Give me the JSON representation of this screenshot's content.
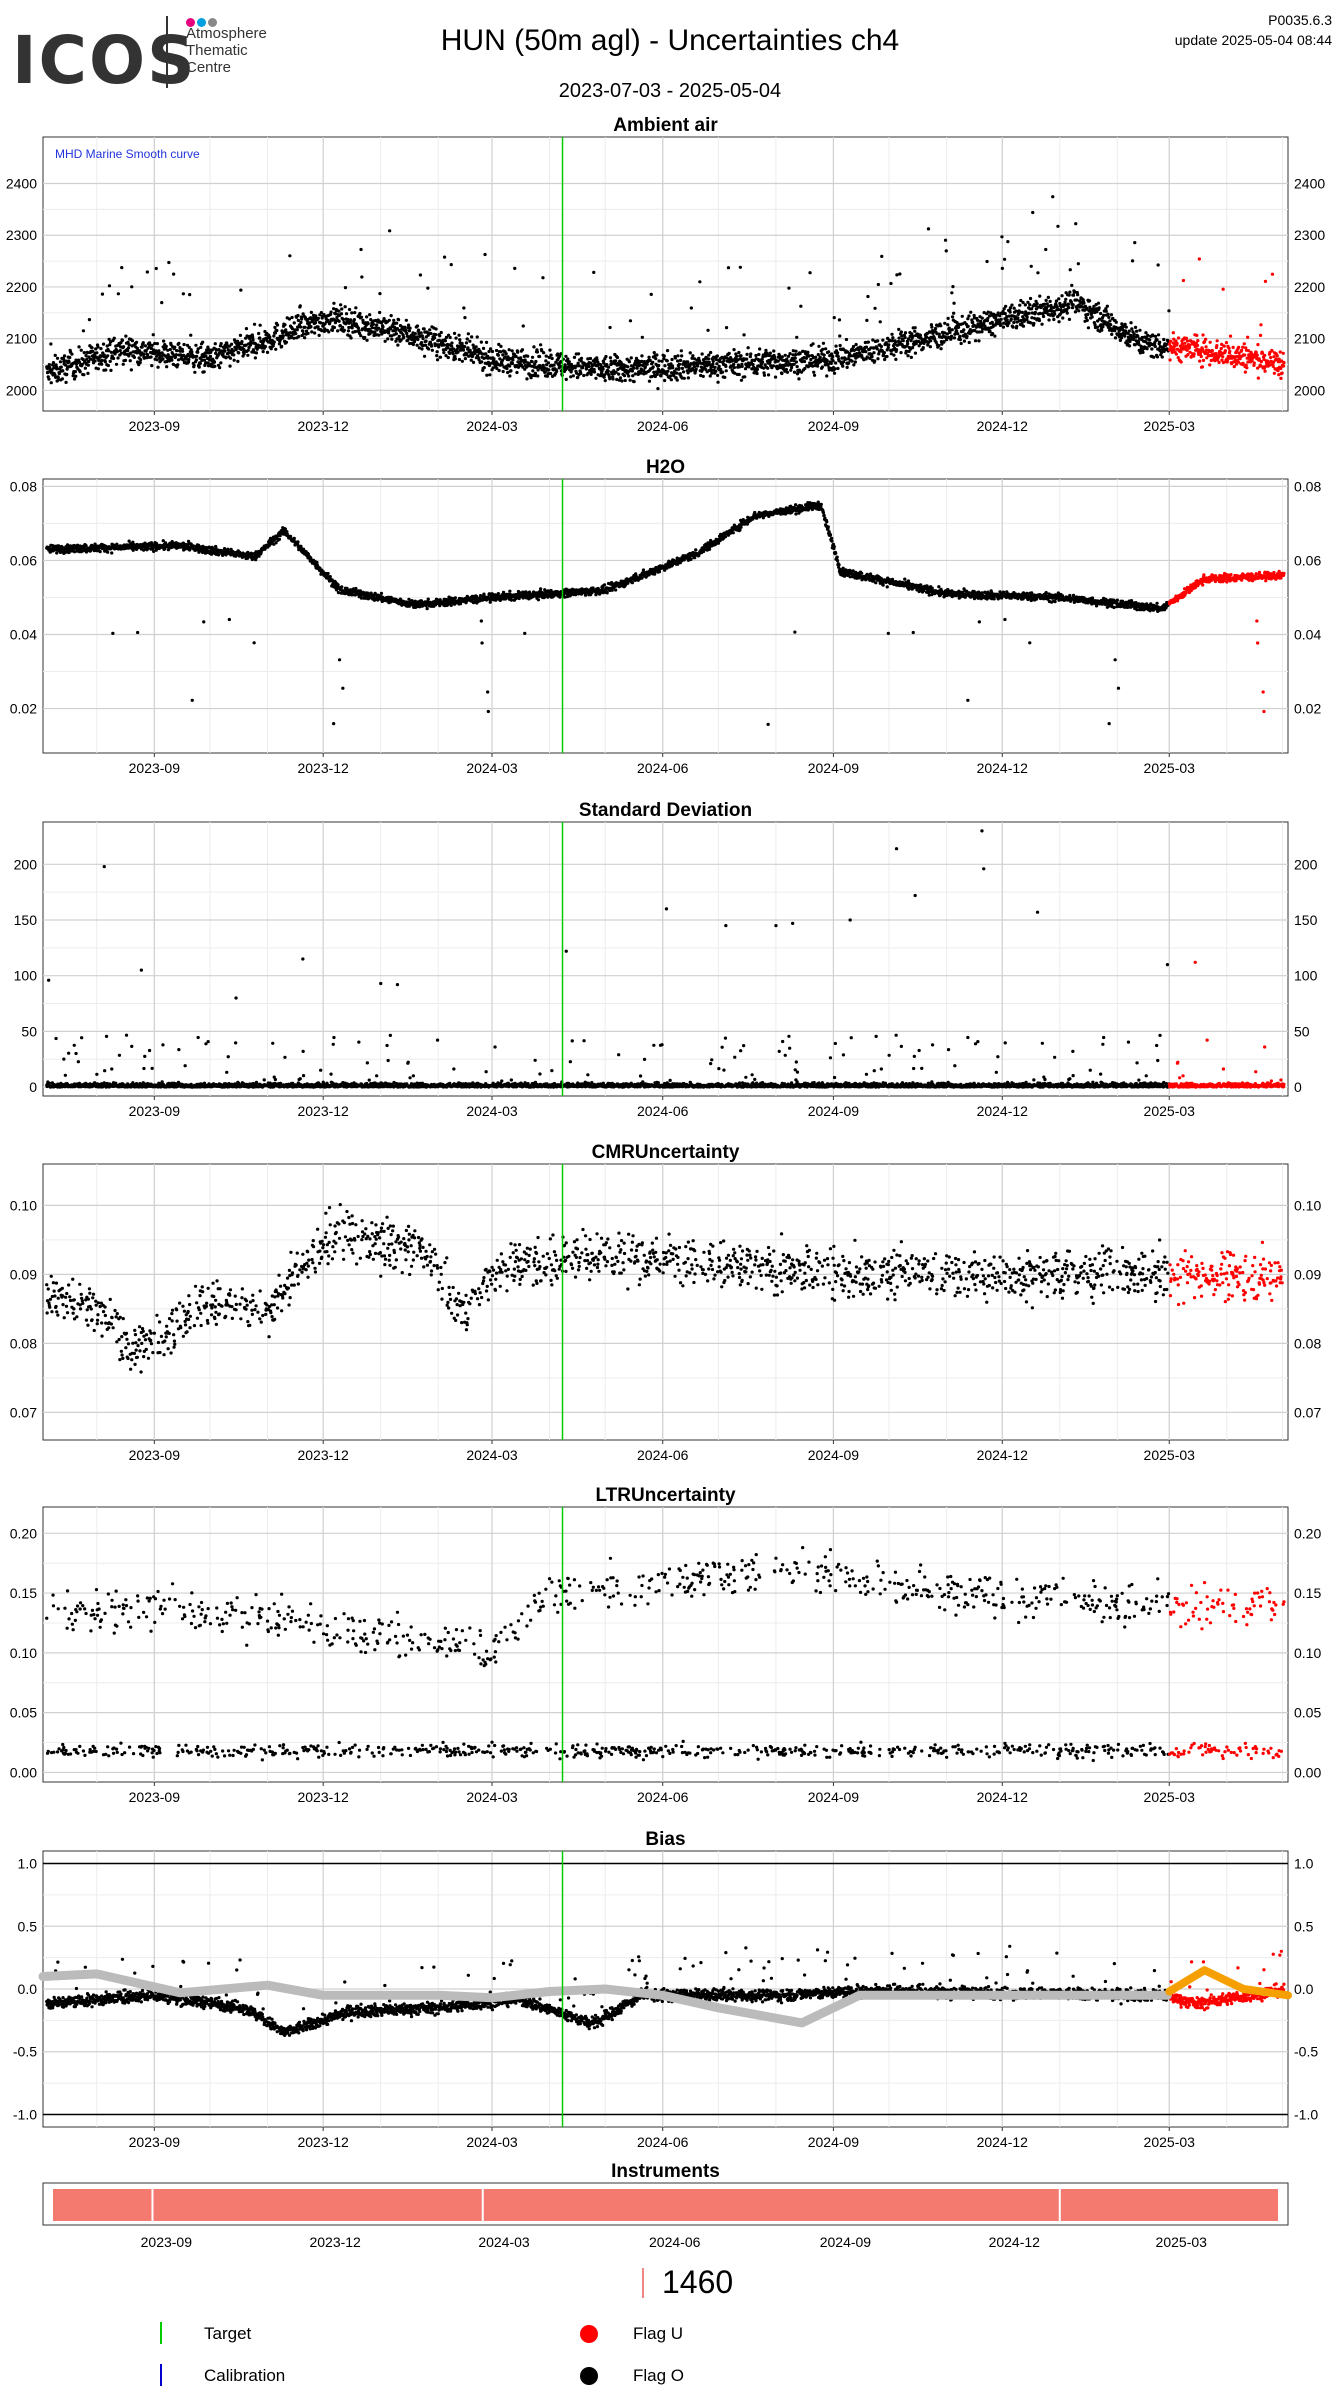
{
  "header": {
    "logo_text": "ICOS",
    "logo_sub": [
      "Atmosphere",
      "Thematic",
      "Centre"
    ],
    "title": "HUN  (50m agl) - Uncertainties ch4",
    "date_range": "2023-07-03 - 2025-05-04",
    "version": "P0035.6.3",
    "update": "update  2025-05-04 08:44"
  },
  "colors": {
    "points": "#000000",
    "flag_u": "#ff0000",
    "target": "#00cc00",
    "calibration": "#0000cc",
    "bias_smooth": "#bbbbbb",
    "bias_recent": "#f5a000",
    "instrument": "#f47a70",
    "logo_dots": [
      "#e6007e",
      "#00a0e0",
      "#888888"
    ]
  },
  "chart_data": [
    {
      "type": "scatter",
      "title": "Ambient air",
      "annotation": "MHD Marine Smooth curve",
      "x_range": [
        "2023-07-03",
        "2025-05-04"
      ],
      "ylim": [
        1960,
        2490
      ],
      "yticks": [
        2000,
        2100,
        2200,
        2300,
        2400
      ],
      "xticks": [
        "2023-09",
        "2023-12",
        "2024-03",
        "2024-06",
        "2024-09",
        "2024-12",
        "2025-03"
      ],
      "grid": true,
      "target_line": "2024-04-08",
      "flag_u_from": "2025-03-01",
      "series_profile": [
        [
          "2023-07-03",
          2030
        ],
        [
          "2023-08-15",
          2080
        ],
        [
          "2023-10-01",
          2060
        ],
        [
          "2023-12-05",
          2140
        ],
        [
          "2024-01-15",
          2110
        ],
        [
          "2024-03-01",
          2060
        ],
        [
          "2024-05-01",
          2040
        ],
        [
          "2024-07-01",
          2050
        ],
        [
          "2024-09-01",
          2060
        ],
        [
          "2024-11-01",
          2110
        ],
        [
          "2025-01-10",
          2170
        ],
        [
          "2025-02-15",
          2090
        ],
        [
          "2025-03-15",
          2080
        ],
        [
          "2025-05-04",
          2050
        ]
      ]
    },
    {
      "type": "scatter",
      "title": "H2O",
      "x_range": [
        "2023-07-03",
        "2025-05-04"
      ],
      "ylim": [
        0.008,
        0.082
      ],
      "yticks": [
        0.02,
        0.04,
        0.06,
        0.08
      ],
      "xticks": [
        "2023-09",
        "2023-12",
        "2024-03",
        "2024-06",
        "2024-09",
        "2024-12",
        "2025-03"
      ],
      "grid": true,
      "target_line": "2024-04-08",
      "flag_u_from": "2025-03-01",
      "series_profile": [
        [
          "2023-07-03",
          0.063
        ],
        [
          "2023-09-15",
          0.064
        ],
        [
          "2023-10-25",
          0.061
        ],
        [
          "2023-11-10",
          0.068
        ],
        [
          "2023-12-10",
          0.052
        ],
        [
          "2024-01-20",
          0.048
        ],
        [
          "2024-03-01",
          0.05
        ],
        [
          "2024-05-01",
          0.052
        ],
        [
          "2024-06-20",
          0.062
        ],
        [
          "2024-07-20",
          0.072
        ],
        [
          "2024-08-25",
          0.075
        ],
        [
          "2024-09-05",
          0.057
        ],
        [
          "2024-11-01",
          0.051
        ],
        [
          "2025-01-01",
          0.05
        ],
        [
          "2025-02-25",
          0.047
        ],
        [
          "2025-03-20",
          0.055
        ],
        [
          "2025-05-04",
          0.056
        ]
      ]
    },
    {
      "type": "scatter",
      "title": "Standard Deviation",
      "x_range": [
        "2023-07-03",
        "2025-05-04"
      ],
      "ylim": [
        -8,
        238
      ],
      "yticks": [
        0,
        50,
        100,
        150,
        200
      ],
      "xticks": [
        "2023-09",
        "2023-12",
        "2024-03",
        "2024-06",
        "2024-09",
        "2024-12",
        "2025-03"
      ],
      "grid": true,
      "target_line": "2024-04-08",
      "flag_u_from": "2025-03-01",
      "series_profile": [
        [
          "2023-07-03",
          5
        ],
        [
          "2025-05-04",
          5
        ]
      ],
      "outliers": [
        [
          "2023-07-06",
          96
        ],
        [
          "2023-08-05",
          198
        ],
        [
          "2023-08-25",
          105
        ],
        [
          "2023-10-15",
          80
        ],
        [
          "2023-11-20",
          115
        ],
        [
          "2024-01-01",
          93
        ],
        [
          "2024-01-10",
          92
        ],
        [
          "2024-04-10",
          122
        ],
        [
          "2024-06-03",
          160
        ],
        [
          "2024-07-05",
          145
        ],
        [
          "2024-08-01",
          145
        ],
        [
          "2024-08-10",
          147
        ],
        [
          "2024-09-10",
          150
        ],
        [
          "2024-10-05",
          214
        ],
        [
          "2024-10-15",
          172
        ],
        [
          "2024-11-20",
          230
        ],
        [
          "2024-11-21",
          196
        ],
        [
          "2024-12-20",
          157
        ],
        [
          "2025-02-28",
          110
        ],
        [
          "2025-03-15",
          112
        ]
      ]
    },
    {
      "type": "scatter",
      "title": "CMRUncertainty",
      "x_range": [
        "2023-07-03",
        "2025-05-04"
      ],
      "ylim": [
        0.066,
        0.106
      ],
      "yticks": [
        0.07,
        0.08,
        0.09,
        0.1
      ],
      "xticks": [
        "2023-09",
        "2023-12",
        "2024-03",
        "2024-06",
        "2024-09",
        "2024-12",
        "2025-03"
      ],
      "grid": true,
      "target_line": "2024-04-08",
      "flag_u_from": "2025-03-01",
      "series_profile": [
        [
          "2023-07-03",
          0.088
        ],
        [
          "2023-08-01",
          0.085
        ],
        [
          "2023-08-20",
          0.079
        ],
        [
          "2023-10-01",
          0.086
        ],
        [
          "2023-11-01",
          0.085
        ],
        [
          "2023-12-05",
          0.096
        ],
        [
          "2024-01-30",
          0.093
        ],
        [
          "2024-02-10",
          0.084
        ],
        [
          "2024-03-05",
          0.091
        ],
        [
          "2024-05-01",
          0.093
        ],
        [
          "2024-09-01",
          0.09
        ],
        [
          "2025-05-04",
          0.09
        ]
      ]
    },
    {
      "type": "scatter",
      "title": "LTRUncertainty",
      "x_range": [
        "2023-07-03",
        "2025-05-04"
      ],
      "ylim": [
        -0.008,
        0.222
      ],
      "yticks": [
        0.0,
        0.05,
        0.1,
        0.15,
        0.2
      ],
      "xticks": [
        "2023-09",
        "2023-12",
        "2024-03",
        "2024-06",
        "2024-09",
        "2024-12",
        "2025-03"
      ],
      "grid": true,
      "target_line": "2024-04-08",
      "flag_u_from": "2025-03-01",
      "series_profile": [
        [
          "2023-07-03",
          0.02
        ],
        [
          "2025-05-04",
          0.02
        ]
      ],
      "upper_profile": [
        [
          "2023-07-03",
          0.13
        ],
        [
          "2023-09-01",
          0.14
        ],
        [
          "2023-12-15",
          0.12
        ],
        [
          "2024-03-01",
          0.1
        ],
        [
          "2024-04-01",
          0.15
        ],
        [
          "2024-06-15",
          0.16
        ],
        [
          "2024-08-01",
          0.17
        ],
        [
          "2024-09-15",
          0.16
        ],
        [
          "2024-11-01",
          0.15
        ],
        [
          "2025-02-01",
          0.14
        ],
        [
          "2025-05-04",
          0.14
        ]
      ]
    },
    {
      "type": "scatter",
      "title": "Bias",
      "x_range": [
        "2023-07-03",
        "2025-05-04"
      ],
      "ylim": [
        -1.1,
        1.1
      ],
      "yticks": [
        -1.0,
        -0.5,
        0.0,
        0.5,
        1.0
      ],
      "xticks": [
        "2023-09",
        "2023-12",
        "2024-03",
        "2024-06",
        "2024-09",
        "2024-12",
        "2025-03"
      ],
      "grid": true,
      "hlines": [
        -1.0,
        1.0
      ],
      "target_line": "2024-04-08",
      "flag_u_from": "2025-03-01",
      "series_profile": [
        [
          "2023-07-03",
          -0.12
        ],
        [
          "2023-09-01",
          -0.05
        ],
        [
          "2023-10-20",
          -0.15
        ],
        [
          "2023-11-10",
          -0.35
        ],
        [
          "2023-12-15",
          -0.18
        ],
        [
          "2024-02-01",
          -0.15
        ],
        [
          "2024-03-15",
          -0.08
        ],
        [
          "2024-04-25",
          -0.28
        ],
        [
          "2024-05-20",
          -0.05
        ],
        [
          "2024-08-01",
          -0.05
        ],
        [
          "2024-09-15",
          -0.02
        ],
        [
          "2025-02-28",
          -0.05
        ],
        [
          "2025-03-15",
          -0.12
        ],
        [
          "2025-05-04",
          0.0
        ]
      ],
      "smooth_curve": [
        [
          "2023-07-03",
          0.1
        ],
        [
          "2023-08-01",
          0.12
        ],
        [
          "2023-09-15",
          -0.03
        ],
        [
          "2023-11-01",
          0.03
        ],
        [
          "2023-12-01",
          -0.05
        ],
        [
          "2024-02-01",
          -0.05
        ],
        [
          "2024-03-01",
          -0.07
        ],
        [
          "2024-04-01",
          -0.02
        ],
        [
          "2024-05-01",
          0.0
        ],
        [
          "2024-06-01",
          -0.05
        ],
        [
          "2024-07-01",
          -0.15
        ],
        [
          "2024-08-15",
          -0.27
        ],
        [
          "2024-09-15",
          -0.05
        ],
        [
          "2024-11-01",
          -0.05
        ],
        [
          "2025-02-28",
          -0.05
        ]
      ],
      "recent_curve": [
        [
          "2025-03-01",
          -0.02
        ],
        [
          "2025-03-20",
          0.15
        ],
        [
          "2025-04-10",
          0.0
        ],
        [
          "2025-05-04",
          -0.05
        ]
      ]
    },
    {
      "type": "bar",
      "title": "Instruments",
      "x_range": [
        "2023-07-03",
        "2025-05-04"
      ],
      "xticks": [
        "2023-09",
        "2023-12",
        "2024-03",
        "2024-06",
        "2024-09",
        "2024-12",
        "2025-03"
      ],
      "segment_breaks": [
        "2023-08-31",
        "2024-02-25",
        "2025-01-01"
      ]
    }
  ],
  "legend": {
    "instrument_id": "1460",
    "items": [
      {
        "label": "Target",
        "symbol": "line",
        "color": "#00cc00"
      },
      {
        "label": "Calibration",
        "symbol": "line",
        "color": "#0000cc"
      },
      {
        "label": "Flag U",
        "symbol": "dot",
        "color": "#ff0000"
      },
      {
        "label": "Flag O",
        "symbol": "dot",
        "color": "#000000"
      }
    ]
  }
}
